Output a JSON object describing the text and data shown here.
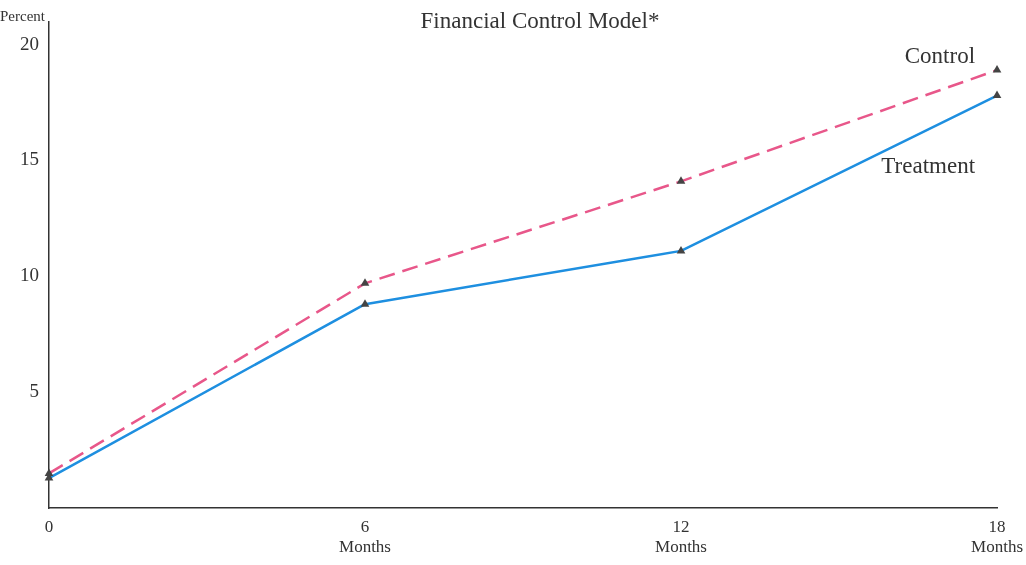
{
  "chart_data": {
    "type": "line",
    "title": "Financial Control Model*",
    "ylabel": "Percent",
    "categories": [
      "0",
      "6 Months",
      "12 Months",
      "18 Months"
    ],
    "series": [
      {
        "name": "Control",
        "color": "#e8578a",
        "line_style": "dashed",
        "values": [
          1.5,
          9.7,
          14.1,
          18.9
        ]
      },
      {
        "name": "Treatment",
        "color": "#1e8fe0",
        "line_style": "solid",
        "values": [
          1.3,
          8.8,
          11.1,
          17.8
        ]
      }
    ],
    "ylim": [
      0,
      21
    ],
    "yticks": [
      5,
      10,
      15,
      20
    ],
    "grid": false,
    "legend": false,
    "marker": "triangle"
  }
}
